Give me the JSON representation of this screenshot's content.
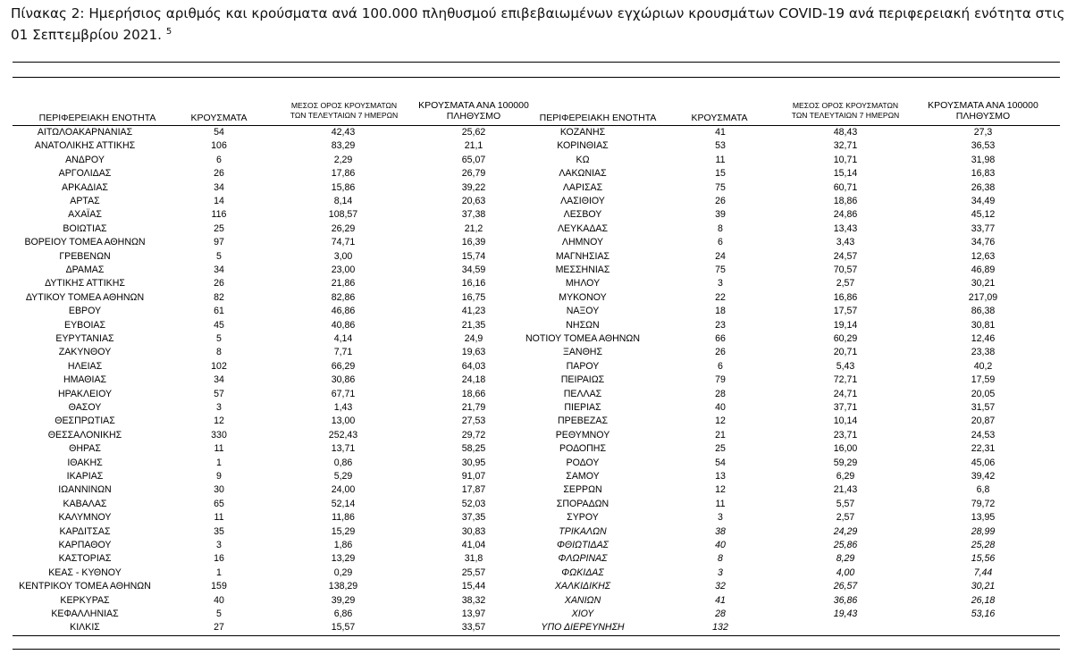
{
  "title": {
    "text": "Πίνακας 2: Ημερήσιος αριθμός και κρούσματα ανά 100.000 πληθυσμού επιβεβαιωμένων εγχώριων κρουσμάτων COVID-19 ανά περιφερειακή ενότητα στις 01 Σεπτεμβρίου 2021.",
    "footnote": "5"
  },
  "headers": {
    "unit": "ΠΕΡΙΦΕΡΕΙΑΚΗ ΕΝΟΤΗΤΑ",
    "cases": "ΚΡΟΥΣΜΑΤΑ",
    "avg7_line1": "ΜΕΣΟΣ ΟΡΟΣ ΚΡΟΥΣΜΑΤΩΝ",
    "avg7_line2": "ΤΩΝ ΤΕΛΕΥΤΑΙΩΝ 7 ΗΜΕΡΩΝ",
    "per100k_line1": "ΚΡΟΥΣΜΑΤΑ ΑΝΑ 100000",
    "per100k_line2": "ΠΛΗΘΥΣΜΟ"
  },
  "left_rows": [
    [
      "ΑΙΤΩΛΟΑΚΑΡΝΑΝΙΑΣ",
      "54",
      "42,43",
      "25,62"
    ],
    [
      "ΑΝΑΤΟΛΙΚΗΣ ΑΤΤΙΚΗΣ",
      "106",
      "83,29",
      "21,1"
    ],
    [
      "ΑΝΔΡΟΥ",
      "6",
      "2,29",
      "65,07"
    ],
    [
      "ΑΡΓΟΛΙΔΑΣ",
      "26",
      "17,86",
      "26,79"
    ],
    [
      "ΑΡΚΑΔΙΑΣ",
      "34",
      "15,86",
      "39,22"
    ],
    [
      "ΑΡΤΑΣ",
      "14",
      "8,14",
      "20,63"
    ],
    [
      "ΑΧΑΪΑΣ",
      "116",
      "108,57",
      "37,38"
    ],
    [
      "ΒΟΙΩΤΙΑΣ",
      "25",
      "26,29",
      "21,2"
    ],
    [
      "ΒΟΡΕΙΟΥ ΤΟΜΕΑ ΑΘΗΝΩΝ",
      "97",
      "74,71",
      "16,39"
    ],
    [
      "ΓΡΕΒΕΝΩΝ",
      "5",
      "3,00",
      "15,74"
    ],
    [
      "ΔΡΑΜΑΣ",
      "34",
      "23,00",
      "34,59"
    ],
    [
      "ΔΥΤΙΚΗΣ ΑΤΤΙΚΗΣ",
      "26",
      "21,86",
      "16,16"
    ],
    [
      "ΔΥΤΙΚΟΥ ΤΟΜΕΑ ΑΘΗΝΩΝ",
      "82",
      "82,86",
      "16,75"
    ],
    [
      "ΕΒΡΟΥ",
      "61",
      "46,86",
      "41,23"
    ],
    [
      "ΕΥΒΟΙΑΣ",
      "45",
      "40,86",
      "21,35"
    ],
    [
      "ΕΥΡΥΤΑΝΙΑΣ",
      "5",
      "4,14",
      "24,9"
    ],
    [
      "ΖΑΚΥΝΘΟΥ",
      "8",
      "7,71",
      "19,63"
    ],
    [
      "ΗΛΕΙΑΣ",
      "102",
      "66,29",
      "64,03"
    ],
    [
      "ΗΜΑΘΙΑΣ",
      "34",
      "30,86",
      "24,18"
    ],
    [
      "ΗΡΑΚΛΕΙΟΥ",
      "57",
      "67,71",
      "18,66"
    ],
    [
      "ΘΑΣΟΥ",
      "3",
      "1,43",
      "21,79"
    ],
    [
      "ΘΕΣΠΡΩΤΙΑΣ",
      "12",
      "13,00",
      "27,53"
    ],
    [
      "ΘΕΣΣΑΛΟΝΙΚΗΣ",
      "330",
      "252,43",
      "29,72"
    ],
    [
      "ΘΗΡΑΣ",
      "11",
      "13,71",
      "58,25"
    ],
    [
      "ΙΘΑΚΗΣ",
      "1",
      "0,86",
      "30,95"
    ],
    [
      "ΙΚΑΡΙΑΣ",
      "9",
      "5,29",
      "91,07"
    ],
    [
      "ΙΩΑΝΝΙΝΩΝ",
      "30",
      "24,00",
      "17,87"
    ],
    [
      "ΚΑΒΑΛΑΣ",
      "65",
      "52,14",
      "52,03"
    ],
    [
      "ΚΑΛΥΜΝΟΥ",
      "11",
      "11,86",
      "37,35"
    ],
    [
      "ΚΑΡΔΙΤΣΑΣ",
      "35",
      "15,29",
      "30,83"
    ],
    [
      "ΚΑΡΠΑΘΟΥ",
      "3",
      "1,86",
      "41,04"
    ],
    [
      "ΚΑΣΤΟΡΙΑΣ",
      "16",
      "13,29",
      "31,8"
    ],
    [
      "ΚΕΑΣ - ΚΥΘΝΟΥ",
      "1",
      "0,29",
      "25,57"
    ],
    [
      "ΚΕΝΤΡΙΚΟΥ ΤΟΜΕΑ ΑΘΗΝΩΝ",
      "159",
      "138,29",
      "15,44"
    ],
    [
      "ΚΕΡΚΥΡΑΣ",
      "40",
      "39,29",
      "38,32"
    ],
    [
      "ΚΕΦΑΛΛΗΝΙΑΣ",
      "5",
      "6,86",
      "13,97"
    ],
    [
      "ΚΙΛΚΙΣ",
      "27",
      "15,57",
      "33,57"
    ]
  ],
  "right_rows": [
    [
      "ΚΟΖΑΝΗΣ",
      "41",
      "48,43",
      "27,3"
    ],
    [
      "ΚΟΡΙΝΘΙΑΣ",
      "53",
      "32,71",
      "36,53"
    ],
    [
      "ΚΩ",
      "11",
      "10,71",
      "31,98"
    ],
    [
      "ΛΑΚΩΝΙΑΣ",
      "15",
      "15,14",
      "16,83"
    ],
    [
      "ΛΑΡΙΣΑΣ",
      "75",
      "60,71",
      "26,38"
    ],
    [
      "ΛΑΣΙΘΙΟΥ",
      "26",
      "18,86",
      "34,49"
    ],
    [
      "ΛΕΣΒΟΥ",
      "39",
      "24,86",
      "45,12"
    ],
    [
      "ΛΕΥΚΑΔΑΣ",
      "8",
      "13,43",
      "33,77"
    ],
    [
      "ΛΗΜΝΟΥ",
      "6",
      "3,43",
      "34,76"
    ],
    [
      "ΜΑΓΝΗΣΙΑΣ",
      "24",
      "24,57",
      "12,63"
    ],
    [
      "ΜΕΣΣΗΝΙΑΣ",
      "75",
      "70,57",
      "46,89"
    ],
    [
      "ΜΗΛΟΥ",
      "3",
      "2,57",
      "30,21"
    ],
    [
      "ΜΥΚΟΝΟΥ",
      "22",
      "16,86",
      "217,09"
    ],
    [
      "ΝΑΞΟΥ",
      "18",
      "17,57",
      "86,38"
    ],
    [
      "ΝΗΣΩΝ",
      "23",
      "19,14",
      "30,81"
    ],
    [
      "ΝΟΤΙΟΥ ΤΟΜΕΑ ΑΘΗΝΩΝ",
      "66",
      "60,29",
      "12,46"
    ],
    [
      "ΞΑΝΘΗΣ",
      "26",
      "20,71",
      "23,38"
    ],
    [
      "ΠΑΡΟΥ",
      "6",
      "5,43",
      "40,2"
    ],
    [
      "ΠΕΙΡΑΙΩΣ",
      "79",
      "72,71",
      "17,59"
    ],
    [
      "ΠΕΛΛΑΣ",
      "28",
      "24,71",
      "20,05"
    ],
    [
      "ΠΙΕΡΙΑΣ",
      "40",
      "37,71",
      "31,57"
    ],
    [
      "ΠΡΕΒΕΖΑΣ",
      "12",
      "10,14",
      "20,87"
    ],
    [
      "ΡΕΘΥΜΝΟΥ",
      "21",
      "23,71",
      "24,53"
    ],
    [
      "ΡΟΔΟΠΗΣ",
      "25",
      "16,00",
      "22,31"
    ],
    [
      "ΡΟΔΟΥ",
      "54",
      "59,29",
      "45,06"
    ],
    [
      "ΣΑΜΟΥ",
      "13",
      "6,29",
      "39,42"
    ],
    [
      "ΣΕΡΡΩΝ",
      "12",
      "21,43",
      "6,8"
    ],
    [
      "ΣΠΟΡΑΔΩΝ",
      "11",
      "5,57",
      "79,72"
    ],
    [
      "ΣΥΡΟΥ",
      "3",
      "2,57",
      "13,95"
    ],
    [
      "ΤΡΙΚΑΛΩΝ",
      "38",
      "24,29",
      "28,99"
    ],
    [
      "ΦΘΙΩΤΙΔΑΣ",
      "40",
      "25,86",
      "25,28"
    ],
    [
      "ΦΛΩΡΙΝΑΣ",
      "8",
      "8,29",
      "15,56"
    ],
    [
      "ΦΩΚΙΔΑΣ",
      "3",
      "4,00",
      "7,44"
    ],
    [
      "ΧΑΛΚΙΔΙΚΗΣ",
      "32",
      "26,57",
      "30,21"
    ],
    [
      "ΧΑΝΙΩΝ",
      "41",
      "36,86",
      "26,18"
    ],
    [
      "ΧΙΟΥ",
      "28",
      "19,43",
      "53,16"
    ],
    [
      "ΥΠΟ ΔΙΕΡΕΥΝΗΣΗ",
      "132",
      "",
      ""
    ]
  ],
  "italic_right_from_index": 29
}
